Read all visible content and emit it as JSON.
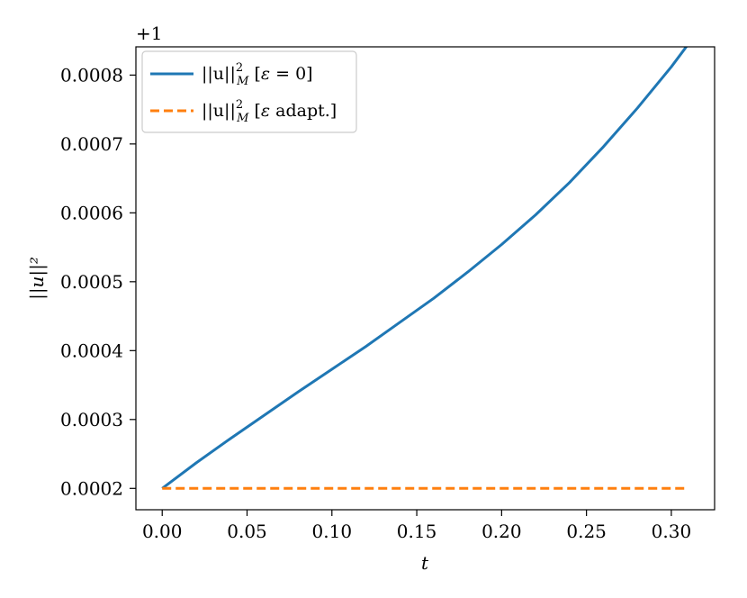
{
  "chart_data": {
    "type": "line",
    "xlabel": "t",
    "ylabel": "||u||²",
    "y_offset_label": "+1",
    "xlim": [
      -0.0155,
      0.3255
    ],
    "ylim": [
      0.000169,
      0.000841
    ],
    "x_ticks": [
      0.0,
      0.05,
      0.1,
      0.15,
      0.2,
      0.25,
      0.3
    ],
    "x_tick_labels": [
      "0.00",
      "0.05",
      "0.10",
      "0.15",
      "0.20",
      "0.25",
      "0.30"
    ],
    "y_ticks": [
      0.0002,
      0.0003,
      0.0004,
      0.0005,
      0.0006,
      0.0007,
      0.0008
    ],
    "y_tick_labels": [
      "0.0002",
      "0.0003",
      "0.0004",
      "0.0005",
      "0.0006",
      "0.0007",
      "0.0008"
    ],
    "grid": false,
    "legend_position": "upper-left",
    "series": [
      {
        "name": "||u||²_M [ε = 0]",
        "color": "#1f77b4",
        "style": "solid",
        "x": [
          0.0,
          0.02,
          0.04,
          0.06,
          0.08,
          0.1,
          0.12,
          0.14,
          0.16,
          0.18,
          0.2,
          0.22,
          0.24,
          0.26,
          0.28,
          0.3,
          0.31
        ],
        "y": [
          0.0002,
          0.000237,
          0.000272,
          0.000306,
          0.00034,
          0.000373,
          0.000406,
          0.000441,
          0.000476,
          0.000514,
          0.000554,
          0.000597,
          0.000644,
          0.000696,
          0.000752,
          0.000812,
          0.000845
        ]
      },
      {
        "name": "||u||²_M [ε adapt.]",
        "color": "#ff7f0e",
        "style": "dashed",
        "x": [
          0.0,
          0.31
        ],
        "y": [
          0.0002,
          0.0002
        ]
      }
    ],
    "legend": [
      {
        "norm": "||u||",
        "sup": "2",
        "sub": "M",
        "bracket_open": " [",
        "eps": "ε",
        "rest": " = 0]"
      },
      {
        "norm": "||u||",
        "sup": "2",
        "sub": "M",
        "bracket_open": " [",
        "eps": "ε",
        "rest": " adapt.]"
      }
    ]
  }
}
